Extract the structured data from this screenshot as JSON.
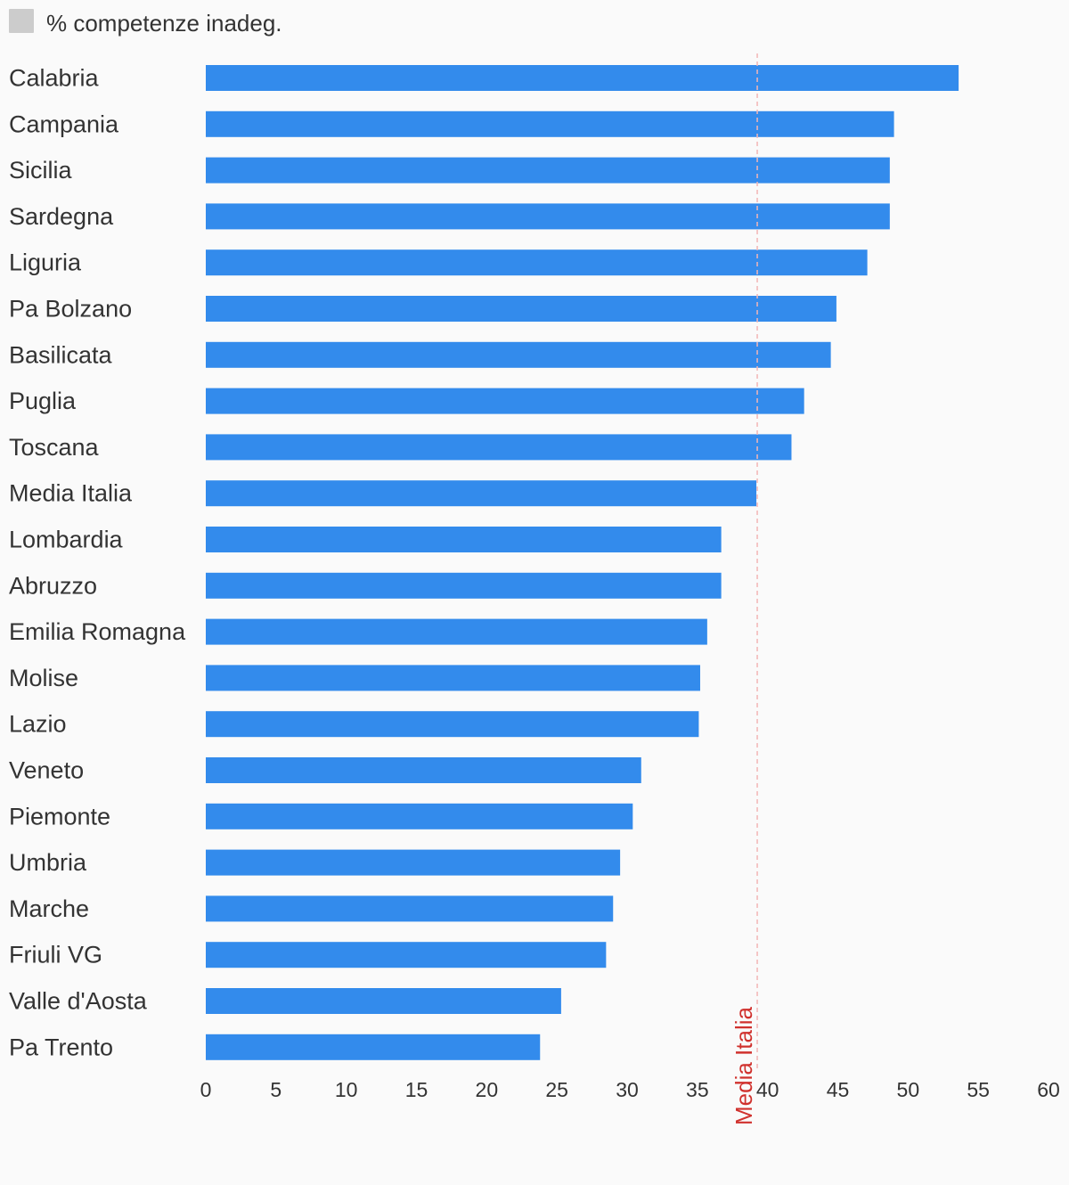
{
  "chart_data": {
    "type": "bar",
    "orientation": "horizontal",
    "legend": {
      "position": "top-left",
      "entries": [
        {
          "name": "% competenze inadeg.",
          "color": "#cccccc"
        }
      ]
    },
    "categories": [
      "Calabria",
      "Campania",
      "Sicilia",
      "Sardegna",
      "Liguria",
      "Pa Bolzano",
      "Basilicata",
      "Puglia",
      "Toscana",
      "Media Italia",
      "Lombardia",
      "Abruzzo",
      "Emilia Romagna",
      "Molise",
      "Lazio",
      "Veneto",
      "Piemonte",
      "Umbria",
      "Marche",
      "Friuli VG",
      "Valle d'Aosta",
      "Pa Trento"
    ],
    "values": [
      53.6,
      49.0,
      48.7,
      48.7,
      47.1,
      44.9,
      44.5,
      42.6,
      41.7,
      39.2,
      36.7,
      36.7,
      35.7,
      35.2,
      35.1,
      31.0,
      30.4,
      29.5,
      29.0,
      28.5,
      25.3,
      23.8
    ],
    "bar_color": "#338bec",
    "xlim": [
      0,
      60
    ],
    "x_ticks": [
      0,
      5,
      10,
      15,
      20,
      25,
      30,
      35,
      40,
      45,
      50,
      55,
      60
    ],
    "grid": false,
    "reference_line": {
      "label": "Media Italia",
      "value": 39.2,
      "color": "#d0312d"
    }
  }
}
